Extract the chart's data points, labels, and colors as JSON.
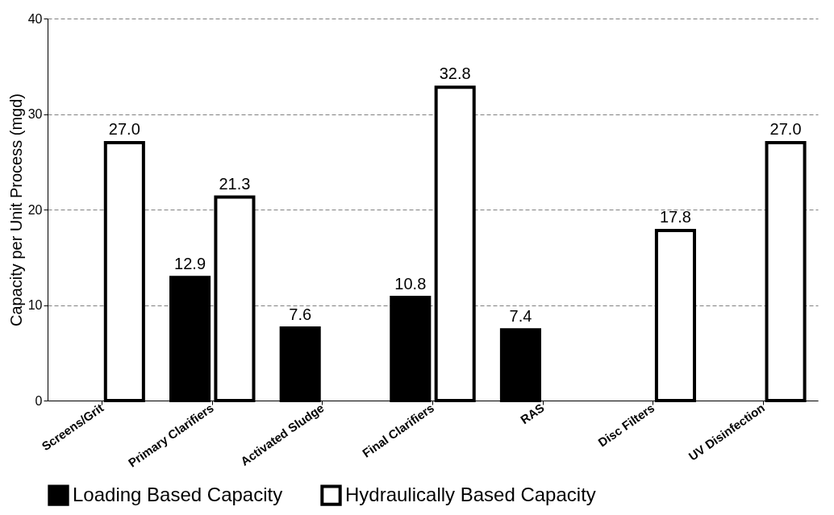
{
  "chart_data": {
    "type": "bar",
    "ylabel": "Capacity per Unit Process (mgd)",
    "categories": [
      "Screens/Grit",
      "Primary Clarifiers",
      "Activated Sludge",
      "Final Clarifiers",
      "RAS",
      "Disc Filters",
      "UV Disinfection"
    ],
    "series": [
      {
        "name": "Loading Based Capacity",
        "color": "#000000",
        "values": [
          null,
          12.9,
          7.6,
          10.8,
          7.4,
          null,
          null
        ],
        "value_labels": [
          null,
          "12.9",
          "7.6",
          "10.8",
          "7.4",
          null,
          null
        ]
      },
      {
        "name": "Hydraulically Based Capacity",
        "color": "#ffffff",
        "values": [
          27.0,
          21.3,
          null,
          32.8,
          null,
          17.8,
          27.0
        ],
        "value_labels": [
          "27.0",
          "21.3",
          null,
          "32.8",
          null,
          "17.8",
          "27.0"
        ]
      }
    ],
    "ylim": [
      0,
      40
    ],
    "yticks": [
      0,
      10,
      20,
      30,
      40
    ],
    "grid": "y",
    "legend": "bottom"
  }
}
